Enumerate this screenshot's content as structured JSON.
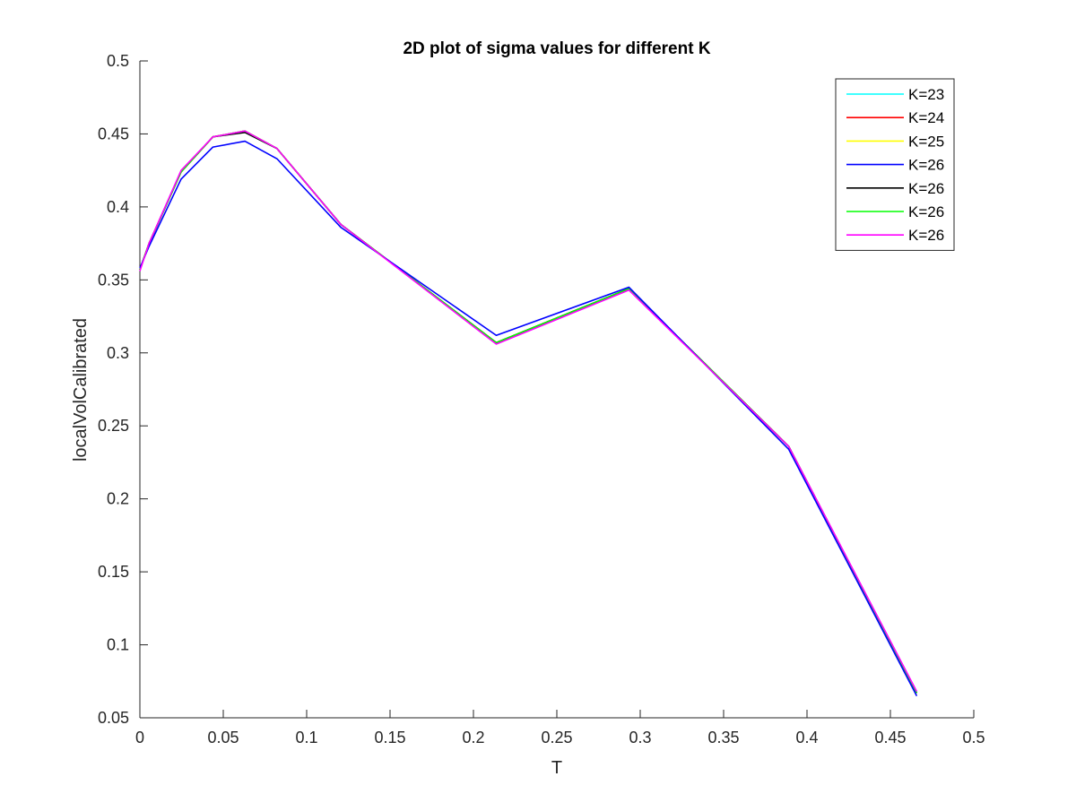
{
  "chart_data": {
    "type": "line",
    "title": "2D plot of sigma values for different K",
    "xlabel": "T",
    "ylabel": "localVolCalibrated",
    "xlim": [
      0,
      0.5
    ],
    "ylim": [
      0.05,
      0.5
    ],
    "xticks": [
      0,
      0.05,
      0.1,
      0.15,
      0.2,
      0.25,
      0.3,
      0.35,
      0.4,
      0.45,
      0.5
    ],
    "yticks": [
      0.05,
      0.1,
      0.15,
      0.2,
      0.25,
      0.3,
      0.35,
      0.4,
      0.45,
      0.5
    ],
    "xtick_labels": [
      "0",
      "0.05",
      "0.1",
      "0.15",
      "0.2",
      "0.25",
      "0.3",
      "0.35",
      "0.4",
      "0.45",
      "0.5"
    ],
    "ytick_labels": [
      "0.05",
      "0.1",
      "0.15",
      "0.2",
      "0.25",
      "0.3",
      "0.35",
      "0.4",
      "0.45",
      "0.5"
    ],
    "grid": false,
    "legend_position": "top-right",
    "x": [
      0,
      0.0055,
      0.0247,
      0.0438,
      0.063,
      0.0822,
      0.1205,
      0.2137,
      0.2932,
      0.389,
      0.4658
    ],
    "series": [
      {
        "name": "K=23",
        "color": "#00ffff",
        "values": [
          0.357,
          0.375,
          0.424,
          0.448,
          0.452,
          0.44,
          0.388,
          0.307,
          0.344,
          0.236,
          0.067
        ]
      },
      {
        "name": "K=24",
        "color": "#ff0000",
        "values": [
          0.357,
          0.375,
          0.424,
          0.448,
          0.452,
          0.44,
          0.388,
          0.307,
          0.344,
          0.236,
          0.067
        ]
      },
      {
        "name": "K=25",
        "color": "#ffff00",
        "values": [
          0.357,
          0.375,
          0.424,
          0.448,
          0.452,
          0.44,
          0.388,
          0.307,
          0.344,
          0.236,
          0.067
        ]
      },
      {
        "name": "K=26",
        "color": "#0000ff",
        "values": [
          0.358,
          0.373,
          0.419,
          0.441,
          0.445,
          0.433,
          0.386,
          0.312,
          0.345,
          0.234,
          0.065
        ]
      },
      {
        "name": "K=26",
        "color": "#000000",
        "values": [
          0.357,
          0.375,
          0.424,
          0.448,
          0.451,
          0.44,
          0.388,
          0.307,
          0.344,
          0.236,
          0.067
        ]
      },
      {
        "name": "K=26",
        "color": "#00ff00",
        "values": [
          0.357,
          0.375,
          0.424,
          0.448,
          0.452,
          0.44,
          0.388,
          0.307,
          0.344,
          0.236,
          0.067
        ]
      },
      {
        "name": "K=26",
        "color": "#ff00ff",
        "values": [
          0.356,
          0.375,
          0.425,
          0.448,
          0.452,
          0.44,
          0.388,
          0.306,
          0.343,
          0.236,
          0.068
        ]
      }
    ],
    "draw_order": [
      0,
      1,
      2,
      4,
      5,
      3,
      6
    ]
  }
}
